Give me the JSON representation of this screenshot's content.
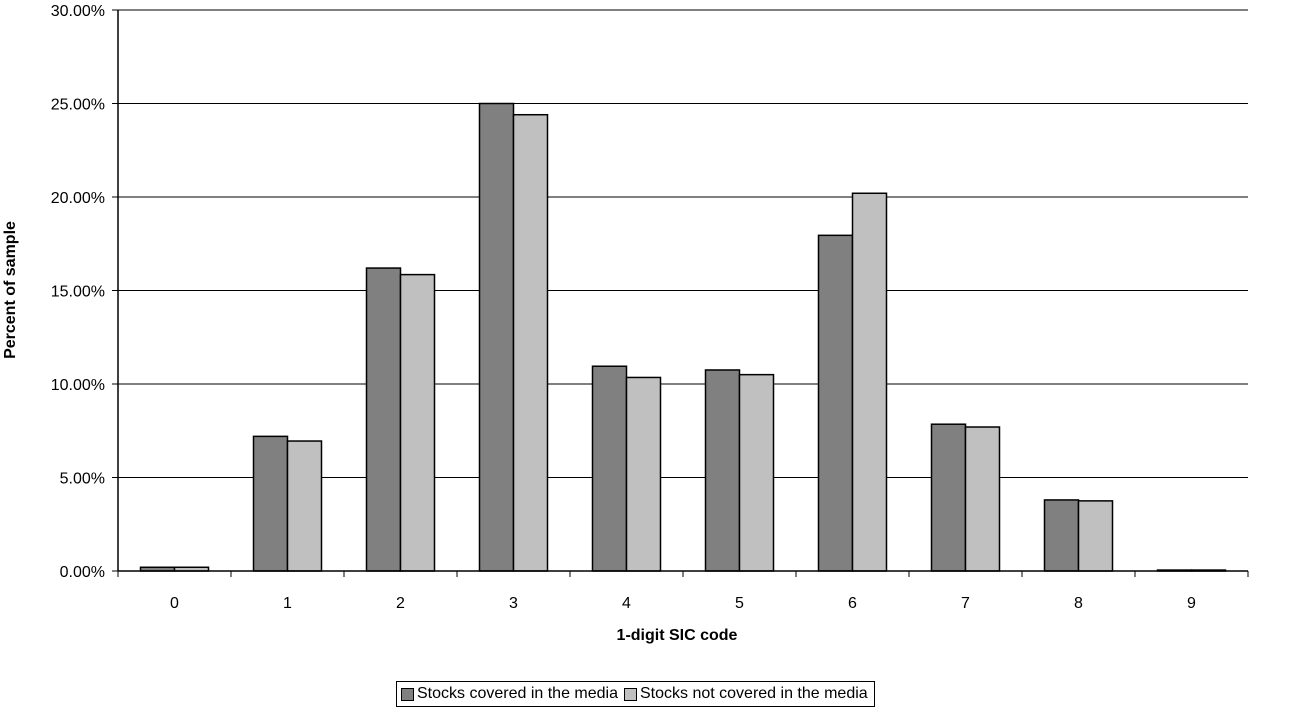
{
  "chart_data": {
    "type": "bar",
    "xlabel": "1-digit SIC code",
    "ylabel": "Percent of sample",
    "categories": [
      "0",
      "1",
      "2",
      "3",
      "4",
      "5",
      "6",
      "7",
      "8",
      "9"
    ],
    "series": [
      {
        "name": "Stocks covered in the media",
        "color": "#808080",
        "values": [
          0.2,
          7.2,
          16.2,
          25.0,
          10.95,
          10.75,
          17.95,
          7.85,
          3.8,
          0.05
        ]
      },
      {
        "name": "Stocks not covered in the media",
        "color": "#c0c0c0",
        "values": [
          0.2,
          6.95,
          15.85,
          24.4,
          10.35,
          10.5,
          20.2,
          7.7,
          3.75,
          0.05
        ]
      }
    ],
    "ylim": [
      0,
      30
    ],
    "yticks": [
      "0.00%",
      "5.00%",
      "10.00%",
      "15.00%",
      "20.00%",
      "25.00%",
      "30.00%"
    ],
    "grid": true,
    "legend_position": "bottom-center"
  }
}
